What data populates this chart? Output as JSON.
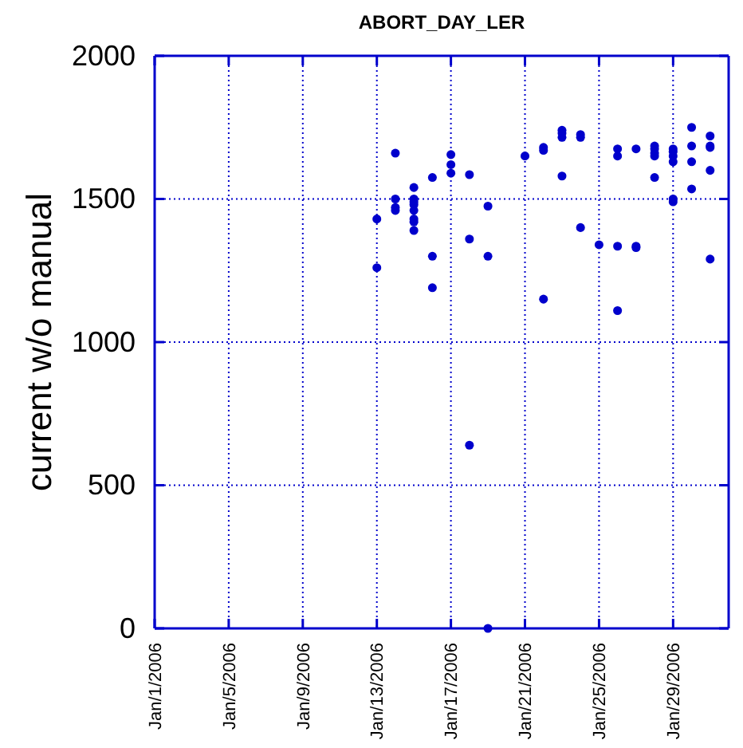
{
  "chart_data": {
    "type": "scatter",
    "title": "ABORT_DAY_LER",
    "ylabel": "current w/o manual",
    "x": [
      "2006-01-13",
      "2006-01-13",
      "2006-01-14",
      "2006-01-14",
      "2006-01-14",
      "2006-01-14",
      "2006-01-15",
      "2006-01-15",
      "2006-01-15",
      "2006-01-15",
      "2006-01-15",
      "2006-01-15",
      "2006-01-15",
      "2006-01-15",
      "2006-01-16",
      "2006-01-16",
      "2006-01-16",
      "2006-01-17",
      "2006-01-17",
      "2006-01-17",
      "2006-01-18",
      "2006-01-18",
      "2006-01-18",
      "2006-01-19",
      "2006-01-19",
      "2006-01-19",
      "2006-01-21",
      "2006-01-22",
      "2006-01-22",
      "2006-01-22",
      "2006-01-23",
      "2006-01-23",
      "2006-01-23",
      "2006-01-23",
      "2006-01-24",
      "2006-01-24",
      "2006-01-24",
      "2006-01-25",
      "2006-01-26",
      "2006-01-26",
      "2006-01-26",
      "2006-01-26",
      "2006-01-27",
      "2006-01-27",
      "2006-01-27",
      "2006-01-28",
      "2006-01-28",
      "2006-01-28",
      "2006-01-28",
      "2006-01-28",
      "2006-01-29",
      "2006-01-29",
      "2006-01-29",
      "2006-01-29",
      "2006-01-29",
      "2006-01-29",
      "2006-01-30",
      "2006-01-30",
      "2006-01-30",
      "2006-01-30",
      "2006-01-31",
      "2006-01-31",
      "2006-01-31",
      "2006-01-31",
      "2006-01-31"
    ],
    "series": [
      {
        "color": "#0000cc",
        "values": [
          1430,
          1260,
          1660,
          1500,
          1470,
          1460,
          1540,
          1500,
          1490,
          1480,
          1460,
          1430,
          1420,
          1390,
          1575,
          1300,
          1190,
          1655,
          1620,
          1590,
          1585,
          1360,
          640,
          1475,
          1300,
          0,
          1650,
          1680,
          1670,
          1150,
          1740,
          1730,
          1715,
          1580,
          1725,
          1715,
          1400,
          1340,
          1675,
          1650,
          1335,
          1110,
          1675,
          1335,
          1330,
          1685,
          1675,
          1660,
          1650,
          1575,
          1675,
          1665,
          1650,
          1630,
          1500,
          1490,
          1750,
          1685,
          1630,
          1535,
          1720,
          1685,
          1680,
          1600,
          1290
        ]
      }
    ],
    "xlim": [
      "2006-01-01",
      "2006-02-01"
    ],
    "xticks": [
      {
        "value": "2006-01-01",
        "label": "Jan/1/2006"
      },
      {
        "value": "2006-01-05",
        "label": "Jan/5/2006"
      },
      {
        "value": "2006-01-09",
        "label": "Jan/9/2006"
      },
      {
        "value": "2006-01-13",
        "label": "Jan/13/2006"
      },
      {
        "value": "2006-01-17",
        "label": "Jan/17/2006"
      },
      {
        "value": "2006-01-21",
        "label": "Jan/21/2006"
      },
      {
        "value": "2006-01-25",
        "label": "Jan/25/2006"
      },
      {
        "value": "2006-01-29",
        "label": "Jan/29/2006"
      }
    ],
    "ylim": [
      0,
      2000
    ],
    "yticks": [
      0,
      500,
      1000,
      1500,
      2000
    ],
    "grid": true,
    "marker": "circle"
  }
}
